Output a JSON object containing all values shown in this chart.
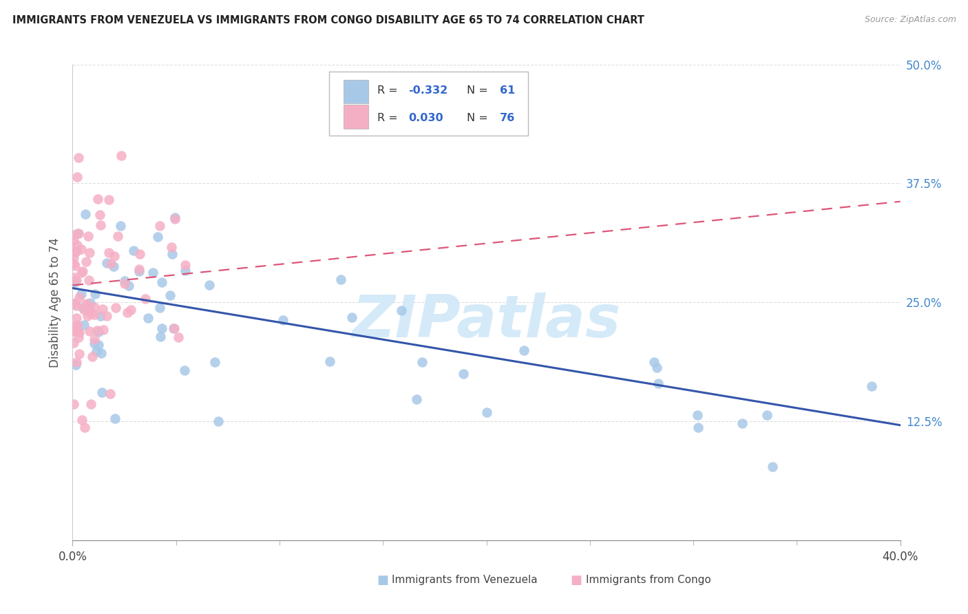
{
  "title": "IMMIGRANTS FROM VENEZUELA VS IMMIGRANTS FROM CONGO DISABILITY AGE 65 TO 74 CORRELATION CHART",
  "source": "Source: ZipAtlas.com",
  "ylabel": "Disability Age 65 to 74",
  "label_venezuela": "Immigrants from Venezuela",
  "label_congo": "Immigrants from Congo",
  "x_min": 0.0,
  "x_max": 0.4,
  "y_min": 0.0,
  "y_max": 0.5,
  "y_ticks": [
    0.125,
    0.25,
    0.375,
    0.5
  ],
  "y_tick_labels": [
    "12.5%",
    "25.0%",
    "37.5%",
    "50.0%"
  ],
  "x_ticks_minor": [
    0.05,
    0.1,
    0.15,
    0.2,
    0.25,
    0.3,
    0.35
  ],
  "x_edge_labels": [
    "0.0%",
    "40.0%"
  ],
  "legend_R_blue": "-0.332",
  "legend_N_blue": "61",
  "legend_R_pink": "0.030",
  "legend_N_pink": "76",
  "blue_dot_color": "#a8c8e8",
  "pink_dot_color": "#f5afc5",
  "blue_line_color": "#3355aa",
  "pink_line_color": "#dd5577",
  "watermark_color": "#d5eaf8",
  "watermark_text": "ZIPatlas",
  "grid_color": "#dddddd",
  "title_color": "#222222",
  "source_color": "#999999",
  "right_tick_color": "#4488cc",
  "blue_intercept": 0.265,
  "blue_slope": -0.36,
  "pink_intercept": 0.268,
  "pink_slope": 0.22
}
